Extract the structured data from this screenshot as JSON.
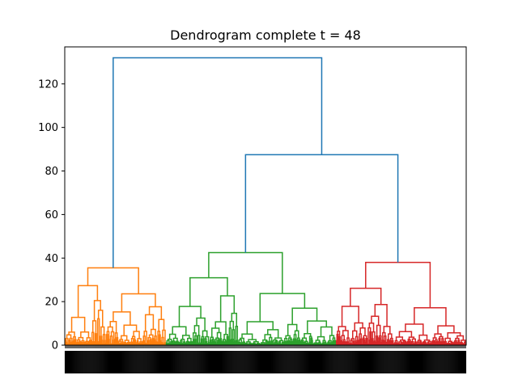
{
  "chart_data": {
    "type": "dendrogram",
    "title": "Dendrogram complete t = 48",
    "xlabel": "",
    "ylabel": "",
    "ylim": [
      0,
      137
    ],
    "yticks": [
      0,
      20,
      40,
      60,
      80,
      100,
      120
    ],
    "leaf_count": 500,
    "colors": {
      "above_threshold": "#1f77b4",
      "orange": "#ff7f0e",
      "green": "#2ca02c",
      "red": "#d62728"
    },
    "clusters": [
      {
        "color": "orange",
        "leaf_start": 0,
        "leaf_end": 126,
        "height": 35.5
      },
      {
        "color": "green",
        "leaf_start": 126,
        "leaf_end": 338,
        "height": 42.5
      },
      {
        "color": "red",
        "leaf_start": 338,
        "leaf_end": 500,
        "height": 38
      }
    ],
    "top_links": [
      {
        "left": "green",
        "right": "red",
        "height": 87.5
      },
      {
        "left": "orange",
        "right": "green+red",
        "height": 132
      }
    ]
  }
}
